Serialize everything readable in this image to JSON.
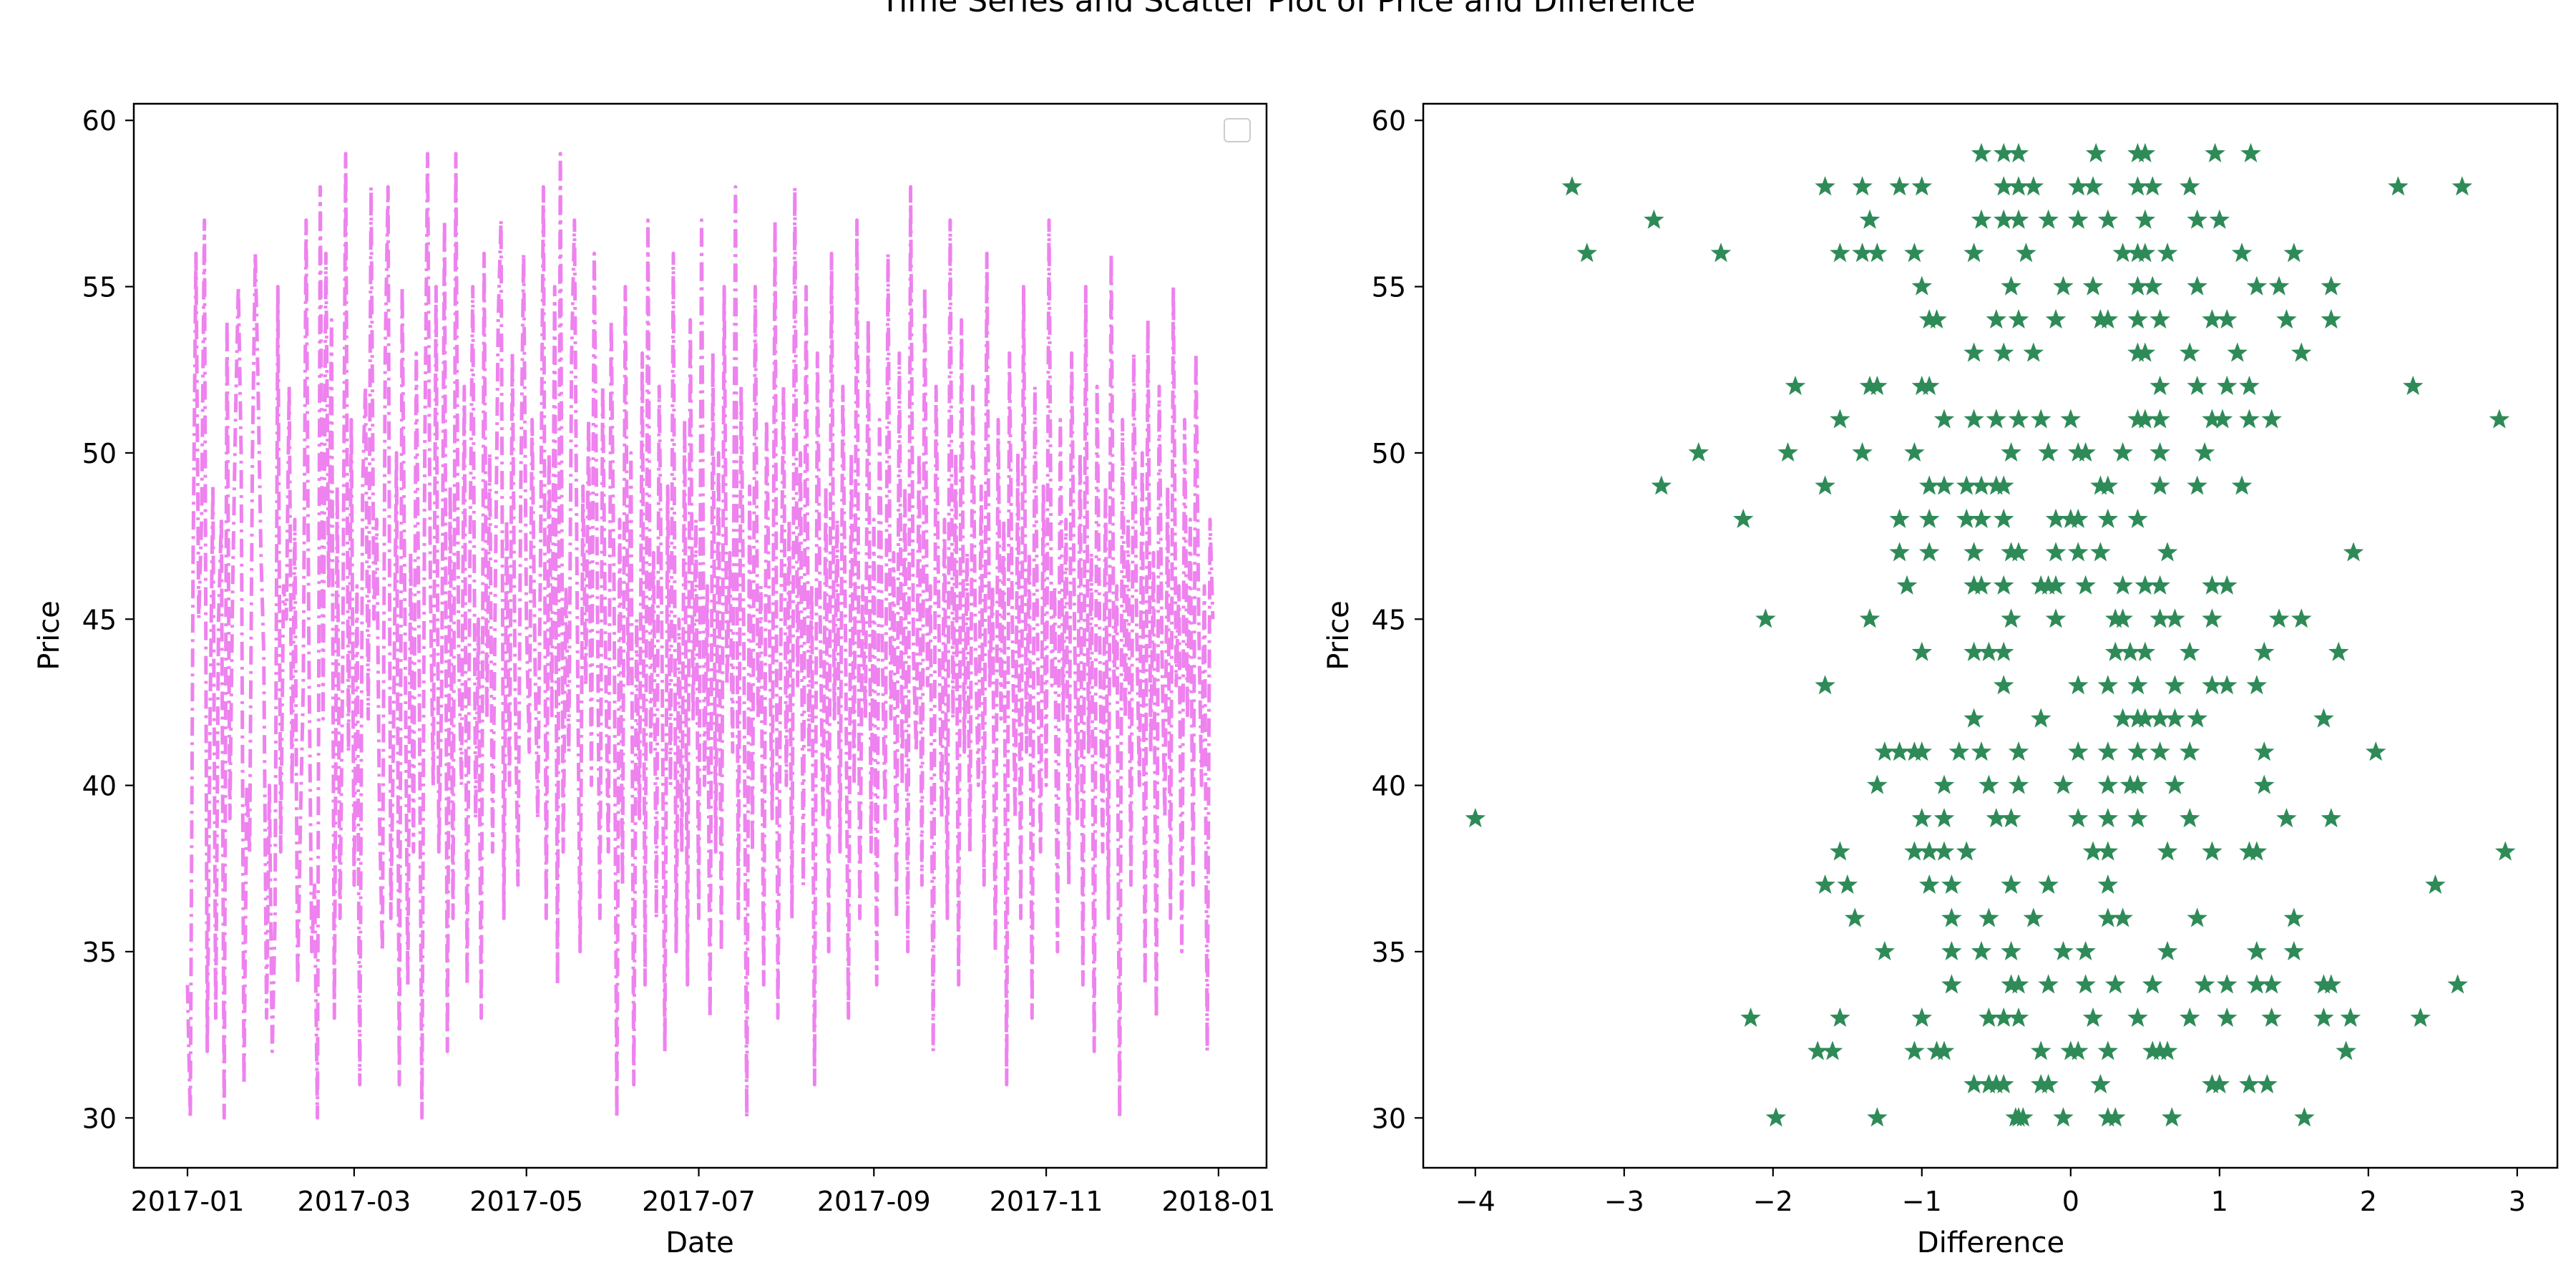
{
  "figure": {
    "title": "Time Series and Scatter Plot of Price and Difference"
  },
  "chart_data": [
    {
      "type": "line",
      "title": "",
      "xlabel": "Date",
      "ylabel": "Price",
      "xlim": [
        "2016-12-13",
        "2018-01-18"
      ],
      "ylim": [
        28.5,
        60.5
      ],
      "xticks": [
        "2017-01",
        "2017-03",
        "2017-05",
        "2017-07",
        "2017-09",
        "2017-11",
        "2018-01"
      ],
      "yticks": [
        30,
        35,
        40,
        45,
        50,
        55,
        60
      ],
      "line_color": "#ee82ee",
      "line_style": "dashdot",
      "legend": "top-right (empty)",
      "grid": false,
      "date_range": [
        "2017-01-01",
        "2017-12-31"
      ],
      "series": [
        {
          "name": "",
          "values": [
            34,
            30,
            47,
            56,
            45,
            48,
            57,
            32,
            42,
            49,
            33,
            45,
            48,
            30,
            54,
            39,
            46,
            51,
            55,
            50,
            31,
            40,
            38,
            50,
            56,
            52,
            47,
            44,
            33,
            40,
            32,
            36,
            55,
            38,
            46,
            45,
            52,
            40,
            48,
            34,
            39,
            43,
            57,
            44,
            35,
            37,
            30,
            58,
            42,
            56,
            46,
            54,
            33,
            49,
            36,
            44,
            59,
            41,
            51,
            37,
            46,
            31,
            49,
            52,
            42,
            58,
            45,
            48,
            39,
            35,
            53,
            58,
            36,
            42,
            50,
            31,
            55,
            45,
            34,
            47,
            38,
            53,
            44,
            30,
            50,
            59,
            46,
            40,
            55,
            38,
            43,
            57,
            32,
            49,
            36,
            59,
            44,
            40,
            52,
            34,
            47,
            55,
            39,
            45,
            33,
            56,
            42,
            50,
            38,
            46,
            54,
            57,
            36,
            48,
            40,
            53,
            43,
            37,
            49,
            56,
            45,
            41,
            51,
            44,
            39,
            47,
            58,
            36,
            50,
            42,
            55,
            34,
            59,
            38,
            46,
            41,
            53,
            57,
            45,
            35,
            49,
            43,
            51,
            40,
            56,
            47,
            36,
            52,
            44,
            38,
            54,
            46,
            30,
            48,
            37,
            55,
            43,
            50,
            31,
            45,
            39,
            53,
            34,
            57,
            41,
            47,
            36,
            52,
            44,
            32,
            49,
            40,
            56,
            35,
            45,
            38,
            51,
            34,
            54,
            42,
            48,
            36,
            57,
            40,
            46,
            33,
            53,
            38,
            50,
            35,
            55,
            43,
            47,
            41,
            58,
            36,
            52,
            44,
            30,
            49,
            38,
            55,
            42,
            46,
            34,
            51,
            45,
            39,
            57,
            33,
            44,
            52,
            40,
            48,
            36,
            58,
            43,
            50,
            37,
            55,
            41,
            46,
            31,
            53,
            45,
            39,
            49,
            35,
            56,
            42,
            48,
            38,
            52,
            44,
            33,
            50,
            40,
            57,
            36,
            46,
            42,
            54,
            38,
            48,
            34,
            51,
            44,
            39,
            56,
            42,
            47,
            36,
            53,
            40,
            49,
            35,
            58,
            44,
            41,
            50,
            37,
            55,
            43,
            46,
            32,
            52,
            45,
            39,
            48,
            36,
            57,
            42,
            50,
            34,
            54,
            41,
            47,
            38,
            52,
            44,
            40,
            49,
            37,
            56,
            43,
            46,
            35,
            51,
            42,
            48,
            31,
            53,
            45,
            39,
            50,
            36,
            55,
            41,
            47,
            33,
            52,
            44,
            38,
            49,
            40,
            57,
            43,
            46,
            35,
            51,
            42,
            48,
            37,
            53,
            45,
            39,
            50,
            34,
            55,
            41,
            47,
            32,
            52,
            44,
            38,
            49,
            36,
            56,
            43,
            46,
            30,
            51,
            42,
            48,
            37,
            53,
            45,
            40,
            50,
            34,
            54,
            41,
            47,
            33,
            52,
            44,
            39,
            49,
            36,
            55,
            43,
            46,
            35,
            51,
            42,
            48,
            37,
            53,
            45,
            40,
            46,
            32,
            48,
            45
          ]
        }
      ]
    },
    {
      "type": "scatter",
      "title": "",
      "xlabel": "Difference",
      "ylabel": "Price",
      "xlim": [
        -4.35,
        3.27
      ],
      "ylim": [
        28.5,
        60.5
      ],
      "xticks": [
        -4,
        -3,
        -2,
        -1,
        0,
        1,
        2,
        3
      ],
      "yticks": [
        30,
        35,
        40,
        45,
        50,
        55,
        60
      ],
      "marker": "star",
      "marker_color": "#2e8b57",
      "grid": false,
      "series": [
        {
          "name": "",
          "x": [
            -0.6,
            -0.45,
            -0.35,
            0.17,
            0.5,
            0.45,
            0.97,
            1.21,
            -3.35,
            -1.65,
            -1.4,
            -1.15,
            -1,
            -0.45,
            -0.35,
            -0.25,
            0.05,
            0.15,
            0.45,
            0.55,
            0.8,
            2.2,
            2.63,
            -2.8,
            -1.35,
            -0.6,
            -0.45,
            -0.35,
            -0.15,
            0.05,
            0.25,
            0.5,
            0.85,
            1,
            -3.25,
            -2.35,
            -1.55,
            -1.4,
            -1.3,
            -1.05,
            -0.65,
            -0.3,
            0.35,
            0.45,
            0.5,
            0.65,
            1.15,
            1.5,
            -1,
            -0.4,
            -0.05,
            0.15,
            0.45,
            0.55,
            0.85,
            1.25,
            1.4,
            1.75,
            -0.95,
            -0.9,
            -0.5,
            -0.35,
            -0.1,
            0.2,
            0.25,
            0.45,
            0.6,
            0.95,
            1.05,
            1.45,
            1.75,
            -0.65,
            -0.45,
            -0.25,
            0.45,
            0.5,
            0.8,
            1.12,
            1.55,
            -1.85,
            -1.35,
            -1.3,
            -1,
            -0.95,
            0.6,
            0.85,
            1.05,
            1.2,
            2.3,
            -1.55,
            -0.85,
            -0.65,
            -0.5,
            -0.35,
            -0.2,
            0,
            0.45,
            0.5,
            0.6,
            0.95,
            1.02,
            1.2,
            1.35,
            2.88,
            -2.5,
            -1.9,
            -1.4,
            -1.05,
            -0.4,
            -0.15,
            0.05,
            0.1,
            0.35,
            0.6,
            0.9,
            -2.75,
            -1.65,
            -0.95,
            -0.85,
            -0.7,
            -0.6,
            -0.5,
            -0.45,
            0.2,
            0.25,
            0.6,
            0.85,
            1.15,
            -2.2,
            -1.15,
            -0.95,
            -0.7,
            -0.6,
            -0.45,
            -0.1,
            0,
            0.05,
            0.25,
            0.45,
            -1.15,
            -0.95,
            -0.65,
            -0.4,
            -0.35,
            -0.1,
            0.05,
            0.2,
            0.65,
            1.9,
            -1.1,
            -0.65,
            -0.6,
            -0.45,
            -0.2,
            -0.15,
            -0.1,
            0.1,
            0.35,
            0.5,
            0.6,
            0.95,
            1.05,
            -2.05,
            -1.35,
            -0.4,
            -0.1,
            0.3,
            0.35,
            0.6,
            0.7,
            0.95,
            1.4,
            1.55,
            -1,
            -0.65,
            -0.55,
            -0.45,
            0.3,
            0.4,
            0.5,
            0.8,
            1.3,
            1.8,
            -1.65,
            -0.45,
            0.05,
            0.25,
            0.45,
            0.7,
            0.95,
            1.05,
            1.25,
            -0.65,
            -0.2,
            0.35,
            0.45,
            0.5,
            0.6,
            0.7,
            0.85,
            1.7,
            -1.25,
            -1.15,
            -1.05,
            -1,
            -0.75,
            -0.6,
            -0.35,
            0.05,
            0.25,
            0.45,
            0.6,
            0.8,
            1.3,
            2.05,
            -1.3,
            -0.85,
            -0.55,
            -0.35,
            -0.05,
            0.25,
            0.4,
            0.45,
            0.7,
            1.3,
            -4,
            -1,
            -0.85,
            -0.5,
            -0.4,
            0.05,
            0.25,
            0.45,
            0.8,
            1.45,
            1.75,
            -1.55,
            -1.05,
            -0.95,
            -0.85,
            -0.7,
            0.15,
            0.25,
            0.65,
            0.95,
            1.2,
            1.25,
            2.92,
            -1.65,
            -1.5,
            -0.95,
            -0.8,
            -0.4,
            -0.15,
            0.25,
            2.45,
            -1.45,
            -0.8,
            -0.55,
            -0.25,
            0.25,
            0.35,
            0.85,
            1.5,
            -1.25,
            -0.8,
            -0.6,
            -0.4,
            -0.05,
            0.1,
            0.65,
            1.25,
            1.5,
            -0.8,
            -0.4,
            -0.35,
            -0.15,
            0.1,
            0.3,
            0.55,
            0.9,
            1.05,
            1.25,
            1.35,
            1.7,
            1.75,
            2.6,
            -2.15,
            -1.55,
            -1.0,
            -0.55,
            -0.45,
            -0.35,
            0.15,
            0.45,
            0.8,
            1.05,
            1.35,
            1.7,
            1.88,
            2.35,
            -1.7,
            -1.6,
            -1.05,
            -0.9,
            -0.85,
            -0.2,
            0,
            0.05,
            0.25,
            0.55,
            0.6,
            0.65,
            1.85,
            -0.65,
            -0.55,
            -0.5,
            -0.45,
            -0.2,
            -0.15,
            0.2,
            0.95,
            1.0,
            1.2,
            1.32,
            -1.98,
            -1.3,
            -0.37,
            -0.35,
            -0.32,
            -0.05,
            0.25,
            0.3,
            0.68,
            1.57
          ],
          "y": [
            59,
            59,
            59,
            59,
            59,
            59,
            59,
            59,
            58,
            58,
            58,
            58,
            58,
            58,
            58,
            58,
            58,
            58,
            58,
            58,
            58,
            58,
            58,
            57,
            57,
            57,
            57,
            57,
            57,
            57,
            57,
            57,
            57,
            57,
            56,
            56,
            56,
            56,
            56,
            56,
            56,
            56,
            56,
            56,
            56,
            56,
            56,
            56,
            55,
            55,
            55,
            55,
            55,
            55,
            55,
            55,
            55,
            55,
            54,
            54,
            54,
            54,
            54,
            54,
            54,
            54,
            54,
            54,
            54,
            54,
            54,
            53,
            53,
            53,
            53,
            53,
            53,
            53,
            53,
            52,
            52,
            52,
            52,
            52,
            52,
            52,
            52,
            52,
            52,
            51,
            51,
            51,
            51,
            51,
            51,
            51,
            51,
            51,
            51,
            51,
            51,
            51,
            51,
            51,
            50,
            50,
            50,
            50,
            50,
            50,
            50,
            50,
            50,
            50,
            50,
            49,
            49,
            49,
            49,
            49,
            49,
            49,
            49,
            49,
            49,
            49,
            49,
            49,
            48,
            48,
            48,
            48,
            48,
            48,
            48,
            48,
            48,
            48,
            48,
            47,
            47,
            47,
            47,
            47,
            47,
            47,
            47,
            47,
            47,
            46,
            46,
            46,
            46,
            46,
            46,
            46,
            46,
            46,
            46,
            46,
            46,
            46,
            45,
            45,
            45,
            45,
            45,
            45,
            45,
            45,
            45,
            45,
            45,
            44,
            44,
            44,
            44,
            44,
            44,
            44,
            44,
            44,
            44,
            43,
            43,
            43,
            43,
            43,
            43,
            43,
            43,
            43,
            42,
            42,
            42,
            42,
            42,
            42,
            42,
            42,
            42,
            41,
            41,
            41,
            41,
            41,
            41,
            41,
            41,
            41,
            41,
            41,
            41,
            41,
            41,
            40,
            40,
            40,
            40,
            40,
            40,
            40,
            40,
            40,
            40,
            39,
            39,
            39,
            39,
            39,
            39,
            39,
            39,
            39,
            39,
            39,
            38,
            38,
            38,
            38,
            38,
            38,
            38,
            38,
            38,
            38,
            38,
            38,
            37,
            37,
            37,
            37,
            37,
            37,
            37,
            37,
            36,
            36,
            36,
            36,
            36,
            36,
            36,
            36,
            35,
            35,
            35,
            35,
            35,
            35,
            35,
            35,
            35,
            34,
            34,
            34,
            34,
            34,
            34,
            34,
            34,
            34,
            34,
            34,
            34,
            34,
            34,
            33,
            33,
            33,
            33,
            33,
            33,
            33,
            33,
            33,
            33,
            33,
            33,
            33,
            33,
            32,
            32,
            32,
            32,
            32,
            32,
            32,
            32,
            32,
            32,
            32,
            32,
            32,
            31,
            31,
            31,
            31,
            31,
            31,
            31,
            31,
            31,
            31,
            31,
            30,
            30,
            30,
            30,
            30,
            30,
            30,
            30,
            30,
            30
          ]
        }
      ]
    }
  ]
}
